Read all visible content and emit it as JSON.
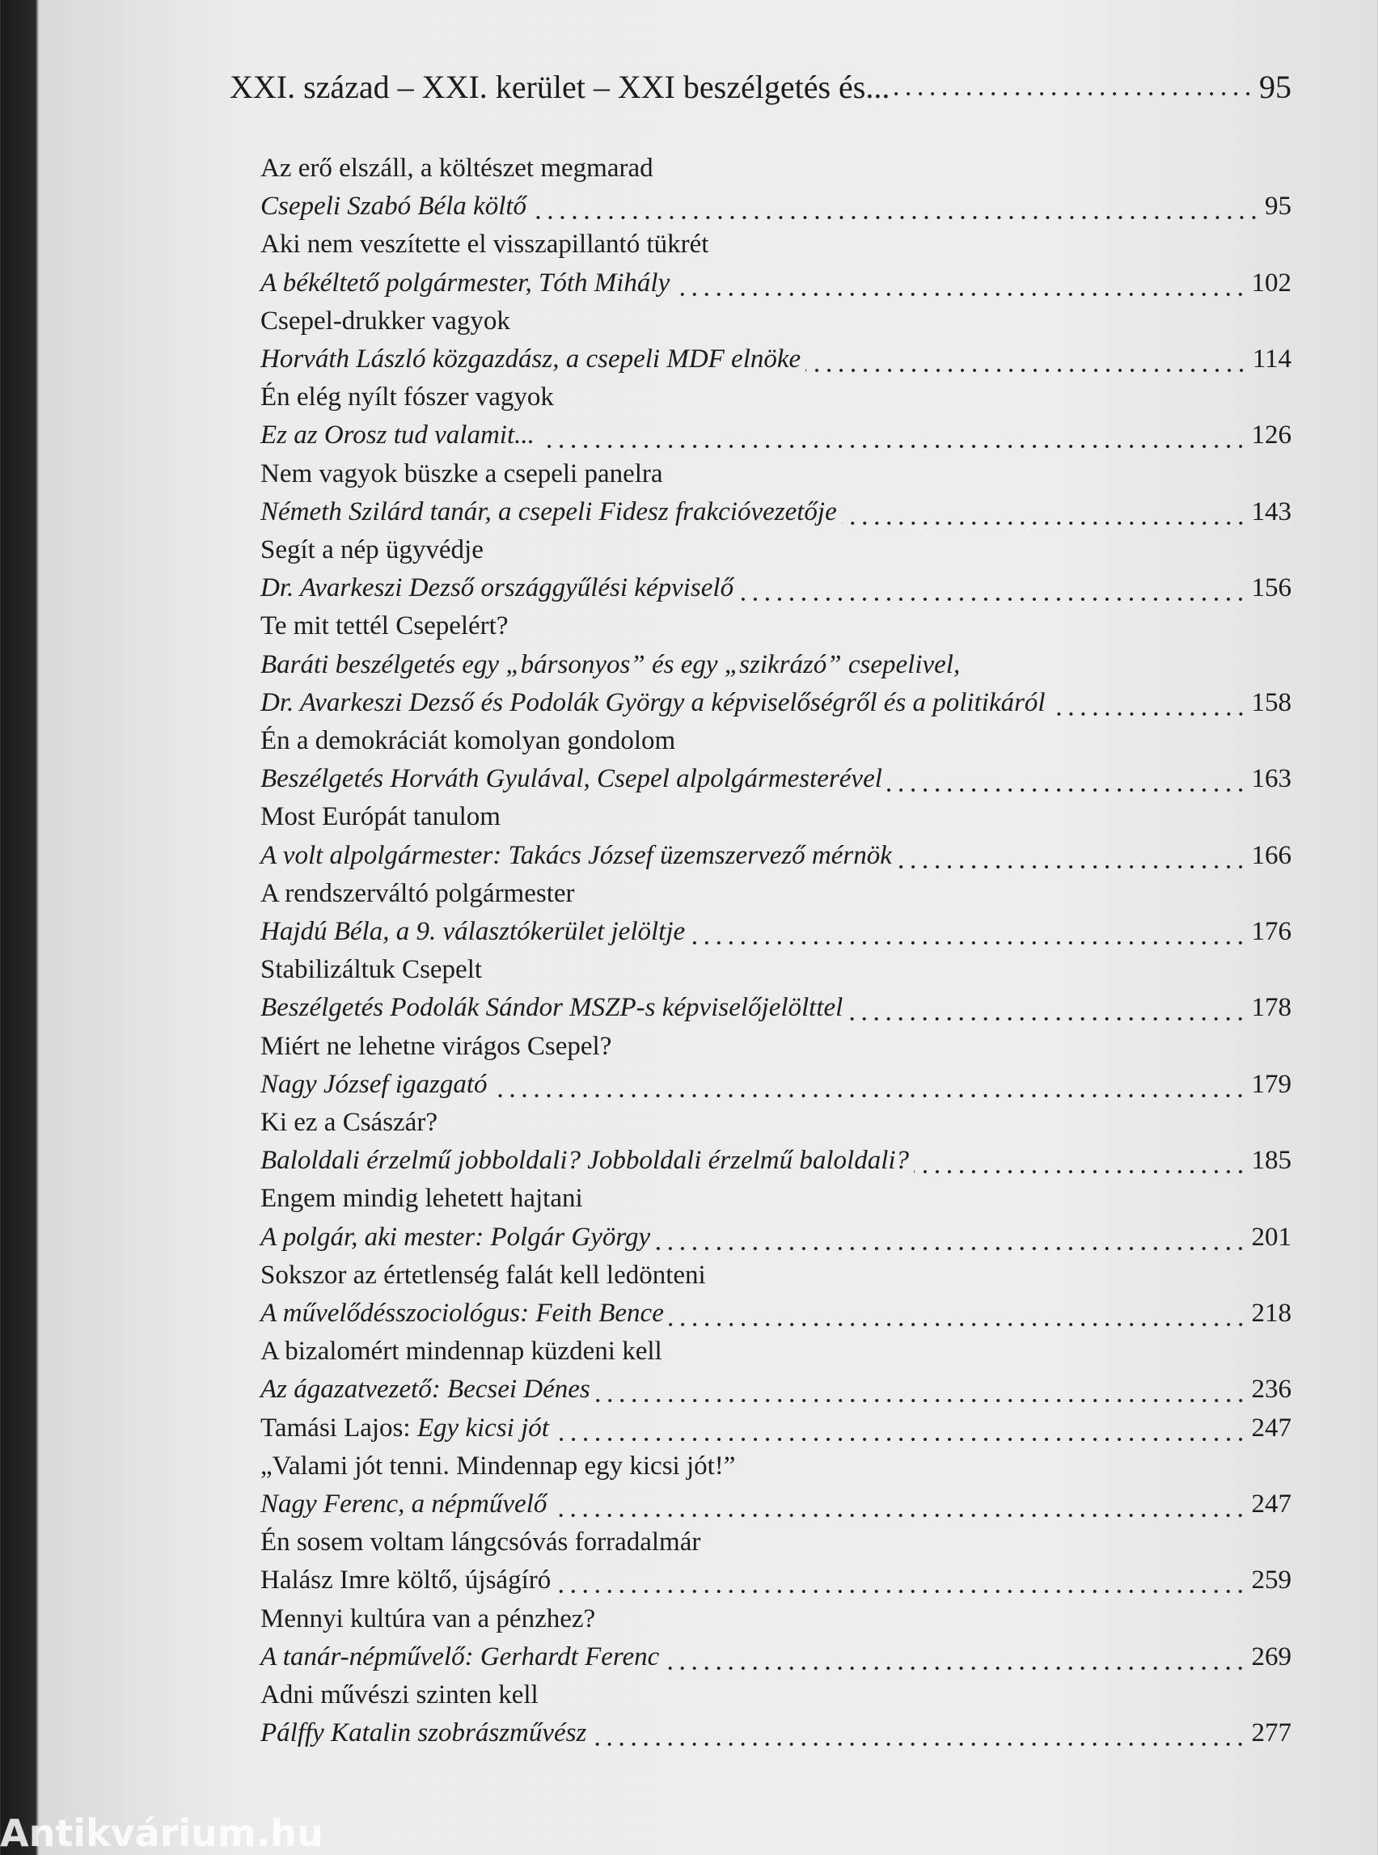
{
  "header": {
    "title": "XXI. század – XXI. kerület – XXI beszélgetés és...",
    "page": 95
  },
  "lines": [
    {
      "parts": [
        {
          "text": "Az erő elszáll, a költészet megmarad",
          "italic": false
        }
      ]
    },
    {
      "parts": [
        {
          "text": "Csepeli Szabó Béla költő",
          "italic": true
        }
      ],
      "page": 95
    },
    {
      "parts": [
        {
          "text": "Aki nem veszítette el visszapillantó tükrét",
          "italic": false
        }
      ]
    },
    {
      "parts": [
        {
          "text": "A békéltető polgármester, Tóth Mihály",
          "italic": true
        }
      ],
      "page": 102
    },
    {
      "parts": [
        {
          "text": "Csepel-drukker vagyok",
          "italic": false
        }
      ]
    },
    {
      "parts": [
        {
          "text": "Horváth László közgazdász, a csepeli MDF elnöke",
          "italic": true
        }
      ],
      "page": 114
    },
    {
      "parts": [
        {
          "text": "Én elég nyílt fószer vagyok",
          "italic": false
        }
      ]
    },
    {
      "parts": [
        {
          "text": "Ez az Orosz tud valamit...",
          "italic": true
        }
      ],
      "page": 126
    },
    {
      "parts": [
        {
          "text": "Nem vagyok büszke a csepeli panelra",
          "italic": false
        }
      ]
    },
    {
      "parts": [
        {
          "text": "Németh Szilárd tanár, a csepeli Fidesz frakcióvezetője",
          "italic": true
        }
      ],
      "page": 143
    },
    {
      "parts": [
        {
          "text": "Segít a nép ügyvédje",
          "italic": false
        }
      ]
    },
    {
      "parts": [
        {
          "text": "Dr. Avarkeszi Dezső országgyűlési képviselő",
          "italic": true
        }
      ],
      "page": 156
    },
    {
      "parts": [
        {
          "text": "Te mit tettél Csepelért?",
          "italic": false
        }
      ]
    },
    {
      "parts": [
        {
          "text": "Baráti beszélgetés egy „bársonyos” és egy „szikrázó” csepelivel,",
          "italic": true
        }
      ]
    },
    {
      "parts": [
        {
          "text": "Dr. Avarkeszi Dezső és Podolák György a képviselőségről és a politikáról",
          "italic": true
        }
      ],
      "page": 158
    },
    {
      "parts": [
        {
          "text": "Én a demokráciát komolyan gondolom",
          "italic": false
        }
      ]
    },
    {
      "parts": [
        {
          "text": "Beszélgetés Horváth Gyulával, Csepel alpolgármesterével",
          "italic": true
        }
      ],
      "page": 163
    },
    {
      "parts": [
        {
          "text": "Most Európát tanulom",
          "italic": false
        }
      ]
    },
    {
      "parts": [
        {
          "text": "A volt alpolgármester: Takács József üzemszervező mérnök",
          "italic": true
        }
      ],
      "page": 166
    },
    {
      "parts": [
        {
          "text": "A rendszerváltó polgármester",
          "italic": false
        }
      ]
    },
    {
      "parts": [
        {
          "text": "Hajdú Béla, a 9. választókerület jelöltje",
          "italic": true
        }
      ],
      "page": 176
    },
    {
      "parts": [
        {
          "text": "Stabilizáltuk Csepelt",
          "italic": false
        }
      ]
    },
    {
      "parts": [
        {
          "text": "Beszélgetés Podolák Sándor MSZP-s képviselőjelölttel",
          "italic": true
        }
      ],
      "page": 178
    },
    {
      "parts": [
        {
          "text": "Miért ne lehetne virágos Csepel?",
          "italic": false
        }
      ]
    },
    {
      "parts": [
        {
          "text": "Nagy József igazgató",
          "italic": true
        }
      ],
      "page": 179
    },
    {
      "parts": [
        {
          "text": "Ki ez a Császár?",
          "italic": false
        }
      ]
    },
    {
      "parts": [
        {
          "text": "Baloldali érzelmű jobboldali? Jobboldali érzelmű baloldali?",
          "italic": true
        }
      ],
      "page": 185
    },
    {
      "parts": [
        {
          "text": "Engem mindig lehetett hajtani",
          "italic": false
        }
      ]
    },
    {
      "parts": [
        {
          "text": "A polgár, aki mester: Polgár György",
          "italic": true
        }
      ],
      "page": 201
    },
    {
      "parts": [
        {
          "text": "Sokszor az értetlenség falát kell ledönteni",
          "italic": false
        }
      ]
    },
    {
      "parts": [
        {
          "text": "A művelődésszociológus: Feith Bence",
          "italic": true
        }
      ],
      "page": 218
    },
    {
      "parts": [
        {
          "text": "A bizalomért mindennap küzdeni kell",
          "italic": false
        }
      ]
    },
    {
      "parts": [
        {
          "text": "Az ágazatvezető: Becsei Dénes",
          "italic": true
        }
      ],
      "page": 236
    },
    {
      "parts": [
        {
          "text": "Tamási Lajos:",
          "italic": false
        },
        {
          "text": "Egy kicsi jót",
          "italic": true
        }
      ],
      "page": 247
    },
    {
      "parts": [
        {
          "text": "„Valami jót tenni. Mindennap egy kicsi jót!”",
          "italic": false
        }
      ]
    },
    {
      "parts": [
        {
          "text": "Nagy Ferenc, a népművelő",
          "italic": true
        }
      ],
      "page": 247
    },
    {
      "parts": [
        {
          "text": "Én sosem voltam lángcsóvás forradalmár",
          "italic": false
        }
      ]
    },
    {
      "parts": [
        {
          "text": "Halász Imre költő, újságíró",
          "italic": false
        }
      ],
      "page": 259
    },
    {
      "parts": [
        {
          "text": "Mennyi kultúra van a pénzhez?",
          "italic": false
        }
      ]
    },
    {
      "parts": [
        {
          "text": "A tanár-népművelő: Gerhardt Ferenc",
          "italic": true
        }
      ],
      "page": 269
    },
    {
      "parts": [
        {
          "text": "Adni művészi szinten kell",
          "italic": false
        }
      ]
    },
    {
      "parts": [
        {
          "text": "Pálffy Katalin szobrászművész",
          "italic": true
        }
      ],
      "page": 277
    }
  ],
  "watermark": "Antikvárium.hu"
}
